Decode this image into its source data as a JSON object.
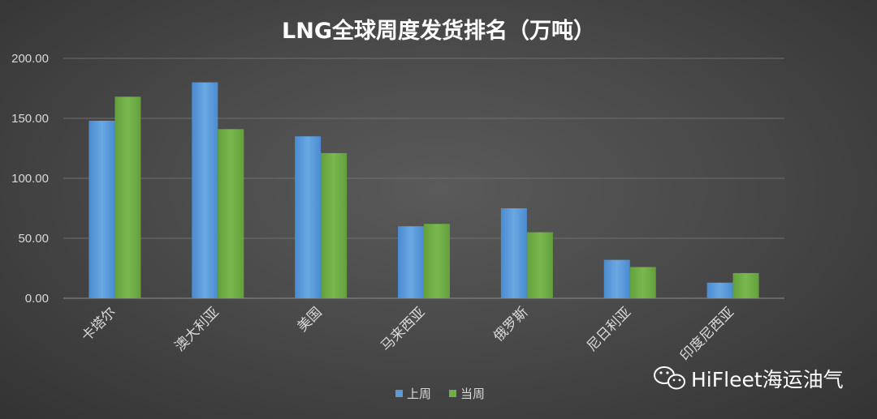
{
  "chart_data": {
    "type": "bar",
    "title": "LNG全球周度发货排名（万吨）",
    "xlabel": "",
    "ylabel": "",
    "categories": [
      "卡塔尔",
      "澳大利亚",
      "美国",
      "马来西亚",
      "俄罗斯",
      "尼日利亚",
      "印度尼西亚"
    ],
    "series": [
      {
        "name": "上周",
        "color": "#5b9bd5",
        "values": [
          148,
          180,
          135,
          60,
          75,
          32,
          13
        ]
      },
      {
        "name": "当周",
        "color": "#70ad47",
        "values": [
          168,
          141,
          121,
          62,
          55,
          26,
          21
        ]
      }
    ],
    "ylim": [
      0,
      200
    ],
    "yticks": [
      "0.00",
      "50.00",
      "100.00",
      "150.00",
      "200.00"
    ],
    "grid": true,
    "legend_position": "bottom"
  },
  "watermark": {
    "text": "HiFleet海运油气",
    "icon": "wechat-icon"
  }
}
